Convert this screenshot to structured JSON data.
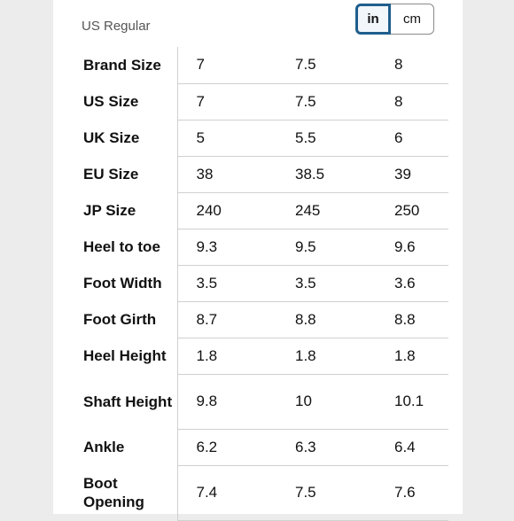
{
  "header": {
    "region_label": "US Regular",
    "unit_toggle": {
      "options": [
        "in",
        "cm"
      ],
      "selected": "in"
    }
  },
  "size_chart": {
    "rows": [
      {
        "label": "Brand Size",
        "values": [
          "7",
          "7.5",
          "8"
        ]
      },
      {
        "label": "US Size",
        "values": [
          "7",
          "7.5",
          "8"
        ]
      },
      {
        "label": "UK Size",
        "values": [
          "5",
          "5.5",
          "6"
        ]
      },
      {
        "label": "EU Size",
        "values": [
          "38",
          "38.5",
          "39"
        ]
      },
      {
        "label": "JP Size",
        "values": [
          "240",
          "245",
          "250"
        ]
      },
      {
        "label": "Heel to toe",
        "values": [
          "9.3",
          "9.5",
          "9.6"
        ]
      },
      {
        "label": "Foot Width",
        "values": [
          "3.5",
          "3.5",
          "3.6"
        ]
      },
      {
        "label": "Foot Girth",
        "values": [
          "8.7",
          "8.8",
          "8.8"
        ]
      },
      {
        "label": "Heel Height",
        "values": [
          "1.8",
          "1.8",
          "1.8"
        ]
      },
      {
        "label": "Shaft Height",
        "values": [
          "9.8",
          "10",
          "10.1"
        ]
      },
      {
        "label": "Ankle",
        "values": [
          "6.2",
          "6.3",
          "6.4"
        ]
      },
      {
        "label": "Boot Opening",
        "values": [
          "7.4",
          "7.5",
          "7.6"
        ]
      }
    ]
  },
  "colors": {
    "toggle_active_border": "#1f5e8c",
    "divider": "#d0d0d0",
    "page_background": "#ececec"
  }
}
